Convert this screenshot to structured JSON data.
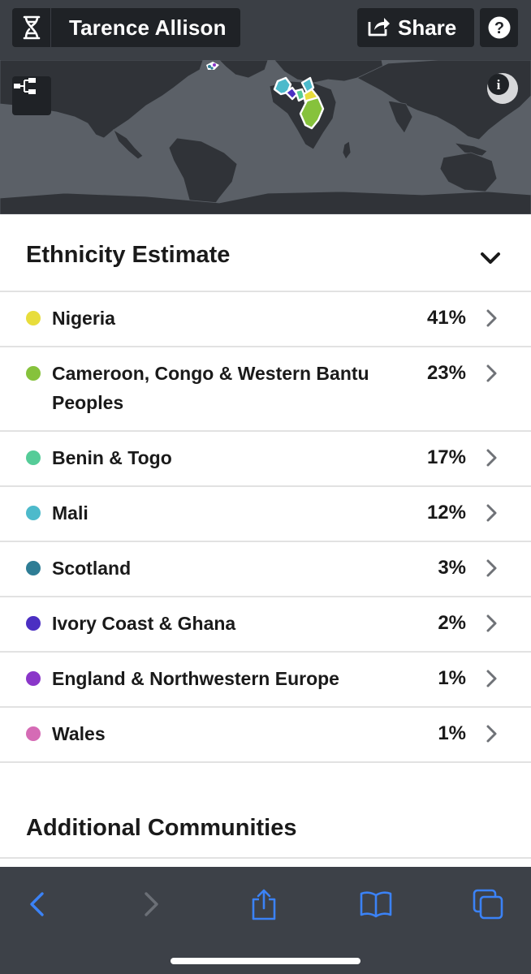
{
  "header": {
    "user_name": "Tarence Allison",
    "share_label": "Share",
    "help_label": "?"
  },
  "map": {
    "info_label": "i"
  },
  "ethnicity": {
    "title": "Ethnicity Estimate",
    "regions": [
      {
        "label": "Nigeria",
        "percent": "41%",
        "color": "#e8dd3b"
      },
      {
        "label": "Cameroon, Congo & Western Bantu Peoples",
        "percent": "23%",
        "color": "#86c23c"
      },
      {
        "label": "Benin & Togo",
        "percent": "17%",
        "color": "#55cc98"
      },
      {
        "label": "Mali",
        "percent": "12%",
        "color": "#4dbacb"
      },
      {
        "label": "Scotland",
        "percent": "3%",
        "color": "#2e7d95"
      },
      {
        "label": "Ivory Coast & Ghana",
        "percent": "2%",
        "color": "#4b2fc2"
      },
      {
        "label": "England & Northwestern Europe",
        "percent": "1%",
        "color": "#8a36c9"
      },
      {
        "label": "Wales",
        "percent": "1%",
        "color": "#d56bb5"
      }
    ]
  },
  "additional": {
    "title": "Additional Communities"
  },
  "colors": {
    "topbar": "#3b3f45",
    "pill": "#1f2226",
    "map_ocean": "#5b6067",
    "map_land": "#303338",
    "safari_bar": "#3d4148",
    "safari_icon": "#3b82f6"
  },
  "toolbar_icons": [
    "back-icon",
    "forward-icon",
    "share-icon",
    "bookmarks-icon",
    "tabs-icon"
  ]
}
